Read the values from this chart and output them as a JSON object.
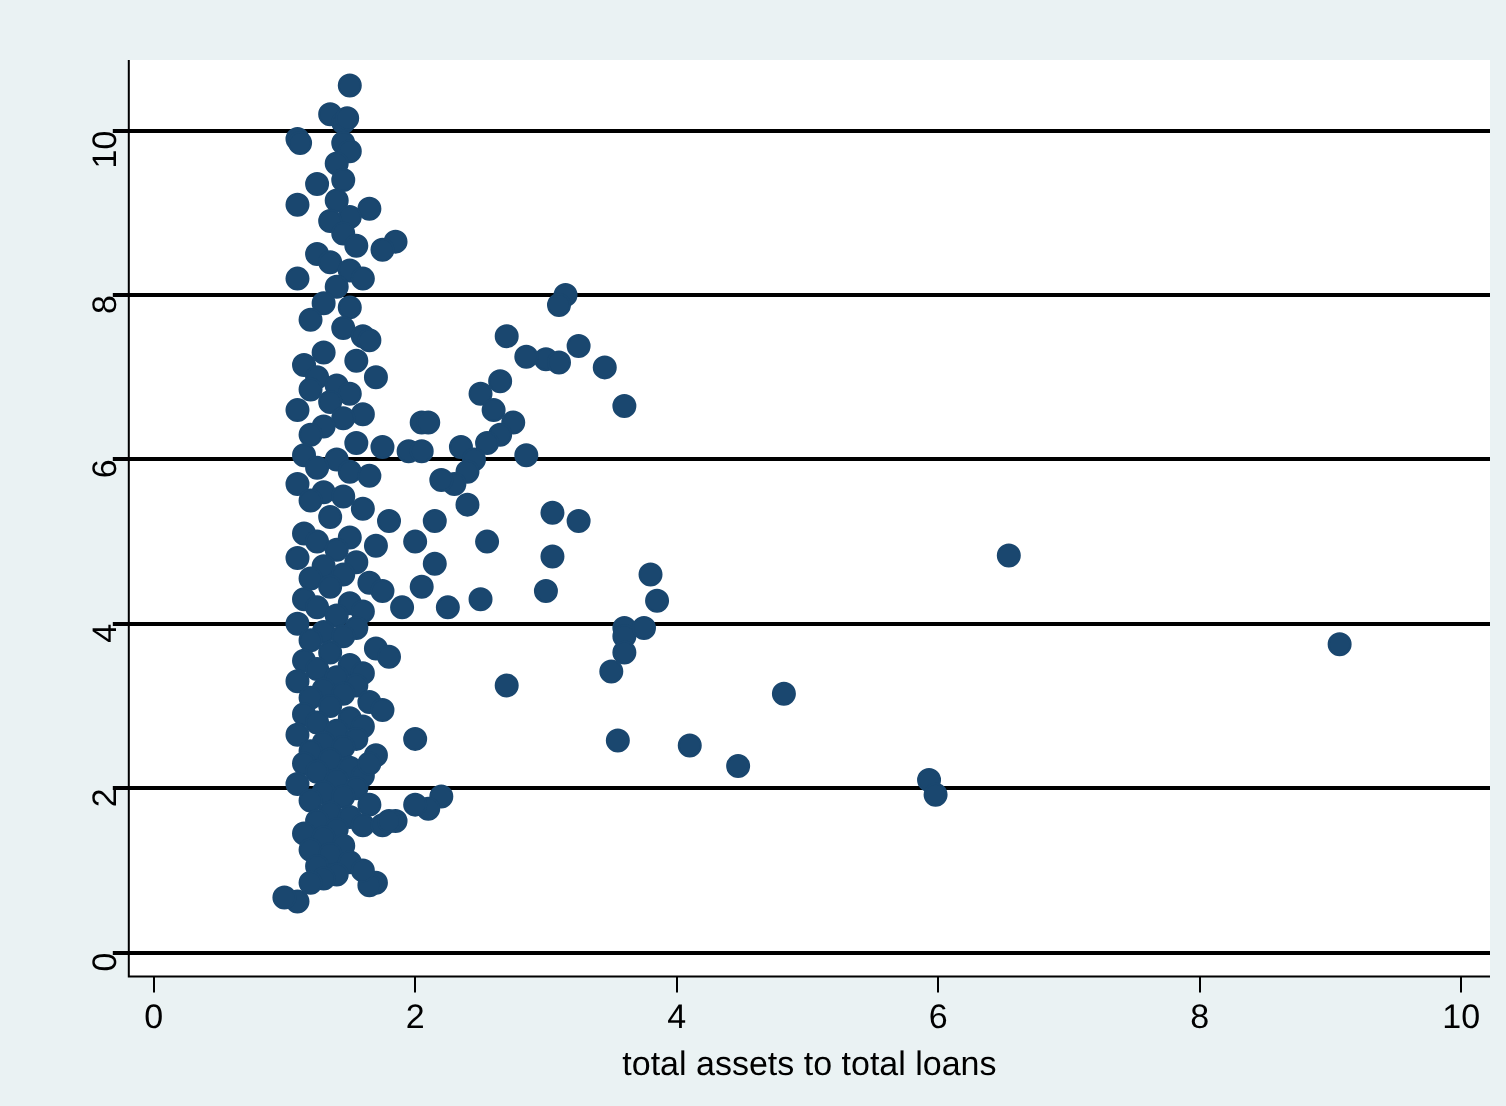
{
  "chart_data": {
    "type": "scatter",
    "xlabel": "total assets to total loans",
    "xlim": [
      -0.19,
      10.22
    ],
    "ylim": [
      -0.29,
      10.86
    ],
    "xticks": [
      0,
      2,
      4,
      6,
      8,
      10
    ],
    "yticks": [
      0,
      2,
      4,
      6,
      8,
      10
    ],
    "grid": "y",
    "marker": "circle",
    "legend": false,
    "series": [
      {
        "color": "#1a476f",
        "x": [
          6.54,
          9.07,
          5.93,
          5.98,
          4.82,
          4.47,
          4.1,
          3.55,
          3.15,
          3.1,
          2.7,
          3.0,
          3.1,
          2.85,
          3.25,
          3.45,
          3.6,
          2.65,
          2.5,
          2.6,
          2.75,
          2.65,
          2.55,
          2.85,
          2.35,
          2.45,
          2.4,
          2.3,
          2.2,
          2.05,
          2.1,
          1.95,
          2.05,
          3.05,
          3.25,
          2.55,
          2.4,
          2.0,
          2.15,
          3.05,
          3.8,
          2.15,
          2.5,
          3.0,
          3.85,
          3.6,
          3.6,
          3.75,
          3.6,
          3.5,
          2.7,
          1.9,
          2.05,
          2.25,
          2.0,
          2.2,
          2.1,
          2.0,
          1.85,
          1.7,
          1.65,
          1.1,
          1.0,
          1.5,
          1.35,
          1.45,
          1.48,
          1.1,
          1.12,
          1.45,
          1.5,
          1.4,
          1.45,
          1.25,
          1.1,
          1.4,
          1.65,
          1.5,
          1.35,
          1.45,
          1.85,
          1.75,
          1.55,
          1.25,
          1.35,
          1.5,
          1.1,
          1.6,
          1.4,
          1.3,
          1.5,
          1.2,
          1.45,
          1.6,
          1.65,
          1.3,
          1.15,
          1.55,
          1.7,
          1.25,
          1.4,
          1.2,
          1.5,
          1.35,
          1.1,
          1.6,
          1.45,
          1.3,
          1.2,
          1.55,
          1.75,
          1.15,
          1.4,
          1.25,
          1.5,
          1.65,
          1.1,
          1.3,
          1.45,
          1.2,
          1.6,
          1.35,
          1.8,
          1.15,
          1.5,
          1.25,
          1.7,
          1.4,
          1.1,
          1.55,
          1.3,
          1.45,
          1.2,
          1.65,
          1.35,
          1.75,
          1.15,
          1.5,
          1.25,
          1.6,
          1.4,
          1.1,
          1.55,
          1.3,
          1.45,
          1.2,
          1.7,
          1.35,
          1.8,
          1.15,
          1.5,
          1.25,
          1.6,
          1.4,
          1.1,
          1.55,
          1.3,
          1.45,
          1.2,
          1.65,
          1.35,
          1.75,
          1.15,
          1.5,
          1.25,
          1.6,
          1.4,
          1.1,
          1.55,
          1.3,
          1.45,
          1.2,
          1.7,
          1.35,
          1.15,
          1.5,
          1.25,
          1.6,
          1.4,
          1.1,
          1.55,
          1.3,
          1.45,
          1.2,
          1.65,
          1.35,
          1.5,
          1.25,
          1.6,
          1.4,
          1.15,
          1.3,
          1.45,
          1.2,
          1.35,
          1.5,
          1.25,
          1.6,
          1.4,
          1.3,
          1.2,
          1.75,
          1.8,
          1.65
        ],
        "values": [
          4.83,
          3.75,
          2.1,
          1.92,
          3.15,
          2.27,
          2.52,
          2.58,
          8.0,
          7.88,
          7.5,
          7.22,
          7.18,
          7.25,
          7.38,
          7.12,
          6.65,
          6.95,
          6.8,
          6.6,
          6.45,
          6.3,
          6.2,
          6.05,
          6.15,
          6.0,
          5.85,
          5.7,
          5.75,
          6.45,
          6.45,
          6.1,
          6.1,
          5.35,
          5.25,
          5.0,
          5.45,
          5.0,
          5.25,
          4.82,
          4.6,
          4.73,
          4.3,
          4.4,
          4.28,
          3.95,
          3.85,
          3.95,
          3.65,
          3.42,
          3.25,
          4.2,
          4.45,
          4.2,
          2.6,
          1.9,
          1.75,
          1.8,
          1.6,
          0.85,
          0.82,
          0.62,
          0.67,
          10.55,
          10.2,
          10.1,
          10.15,
          9.9,
          9.85,
          9.85,
          9.75,
          9.6,
          9.4,
          9.35,
          9.1,
          9.15,
          9.05,
          8.95,
          8.9,
          8.75,
          8.65,
          8.55,
          8.6,
          8.5,
          8.4,
          8.3,
          8.2,
          8.2,
          8.1,
          7.9,
          7.85,
          7.7,
          7.6,
          7.5,
          7.45,
          7.3,
          7.15,
          7.2,
          7.0,
          7.0,
          6.9,
          6.85,
          6.8,
          6.7,
          6.6,
          6.55,
          6.5,
          6.4,
          6.3,
          6.2,
          6.15,
          6.05,
          6.0,
          5.9,
          5.85,
          5.8,
          5.7,
          5.6,
          5.55,
          5.5,
          5.4,
          5.3,
          5.25,
          5.1,
          5.05,
          5.0,
          4.95,
          4.9,
          4.8,
          4.75,
          4.7,
          4.6,
          4.55,
          4.5,
          4.45,
          4.4,
          4.3,
          4.25,
          4.2,
          4.15,
          4.1,
          4.0,
          3.95,
          3.9,
          3.85,
          3.8,
          3.7,
          3.65,
          3.6,
          3.55,
          3.5,
          3.45,
          3.4,
          3.35,
          3.3,
          3.25,
          3.2,
          3.15,
          3.1,
          3.05,
          3.0,
          2.95,
          2.9,
          2.85,
          2.8,
          2.75,
          2.7,
          2.65,
          2.6,
          2.55,
          2.5,
          2.45,
          2.4,
          2.35,
          2.3,
          2.25,
          2.2,
          2.15,
          2.1,
          2.05,
          2.0,
          1.95,
          1.9,
          1.85,
          1.8,
          1.7,
          1.65,
          1.6,
          1.55,
          1.5,
          1.45,
          1.4,
          1.3,
          1.25,
          1.2,
          1.1,
          1.05,
          1.0,
          0.95,
          0.9,
          0.85,
          1.55,
          1.6,
          2.3
        ]
      }
    ]
  }
}
